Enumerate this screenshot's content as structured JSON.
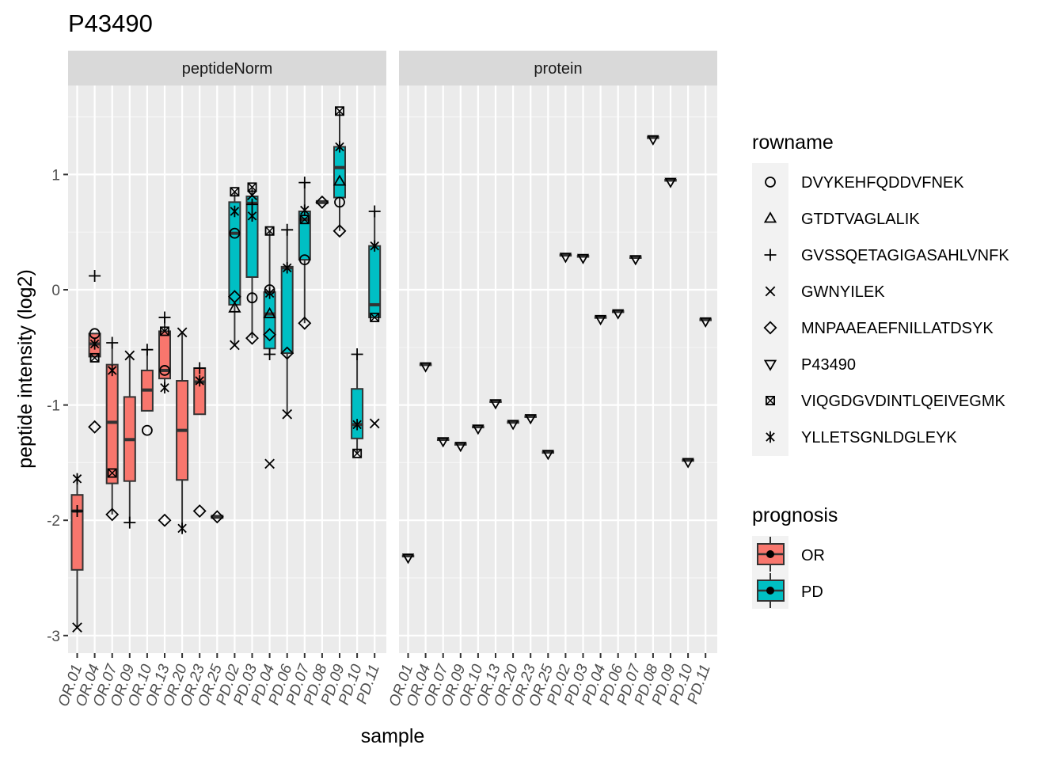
{
  "chart_data": {
    "type": "box",
    "title": "P43490",
    "xlabel": "sample",
    "ylabel": "peptide intensity (log2)",
    "ylim": [
      -3.1,
      1.8
    ],
    "yticks": [
      1,
      0,
      -1,
      -2,
      -3
    ],
    "ytick_labels": [
      "1",
      "0",
      "-1",
      "-2",
      "-3"
    ],
    "grid": true,
    "panels": [
      "peptideNorm",
      "protein"
    ],
    "samples": [
      "OR.01",
      "OR.04",
      "OR.07",
      "OR.09",
      "OR.10",
      "OR.13",
      "OR.20",
      "OR.23",
      "OR.25",
      "PD.02",
      "PD.03",
      "PD.04",
      "PD.06",
      "PD.07",
      "PD.08",
      "PD.09",
      "PD.10",
      "PD.11"
    ],
    "prognosis": [
      "OR",
      "OR",
      "OR",
      "OR",
      "OR",
      "OR",
      "OR",
      "OR",
      "OR",
      "PD",
      "PD",
      "PD",
      "PD",
      "PD",
      "PD",
      "PD",
      "PD",
      "PD"
    ],
    "colors": {
      "OR": "#F8766D",
      "PD": "#00BFC4"
    },
    "legend_rowname": {
      "title": "rowname",
      "position": "right",
      "entries": [
        {
          "label": "DVYKEHFQDDVFNEK",
          "shape": "circle"
        },
        {
          "label": "GTDTVAGLALIK",
          "shape": "triangle"
        },
        {
          "label": "GVSSQETAGIGASAHLVNFK",
          "shape": "plus"
        },
        {
          "label": "GWNYILEK",
          "shape": "cross"
        },
        {
          "label": "MNPAAEAEFNILLATDSYK",
          "shape": "diamond"
        },
        {
          "label": "P43490",
          "shape": "triangle-down"
        },
        {
          "label": "VIQGDGVDINTLQEIVEGMK",
          "shape": "square-cross"
        },
        {
          "label": "YLLETSGNLDGLEYK",
          "shape": "asterisk"
        }
      ]
    },
    "legend_prognosis": {
      "title": "prognosis",
      "entries": [
        "OR",
        "PD"
      ]
    },
    "peptideNorm_boxes": [
      {
        "sample": "OR.01",
        "q1": -2.43,
        "median": -1.92,
        "q3": -1.78,
        "lower": -2.93,
        "upper": -1.64
      },
      {
        "sample": "OR.04",
        "q1": -0.58,
        "median": -0.47,
        "q3": -0.38,
        "lower": -0.58,
        "upper": -0.38
      },
      {
        "sample": "OR.07",
        "q1": -1.68,
        "median": -1.15,
        "q3": -0.65,
        "lower": -1.95,
        "upper": -0.46
      },
      {
        "sample": "OR.09",
        "q1": -1.66,
        "median": -1.3,
        "q3": -0.93,
        "lower": -2.02,
        "upper": -0.57
      },
      {
        "sample": "OR.10",
        "q1": -1.05,
        "median": -0.87,
        "q3": -0.7,
        "lower": -1.05,
        "upper": -0.52
      },
      {
        "sample": "OR.13",
        "q1": -0.77,
        "median": -0.7,
        "q3": -0.36,
        "lower": -0.85,
        "upper": -0.24
      },
      {
        "sample": "OR.20",
        "q1": -1.65,
        "median": -1.22,
        "q3": -0.79,
        "lower": -2.07,
        "upper": -0.37
      },
      {
        "sample": "OR.23",
        "q1": -1.08,
        "median": -0.8,
        "q3": -0.68,
        "lower": -1.08,
        "upper": -0.68
      },
      {
        "sample": "OR.25",
        "q1": -1.98,
        "median": -1.97,
        "q3": -1.96,
        "lower": -1.98,
        "upper": -1.96
      },
      {
        "sample": "PD.02",
        "q1": -0.13,
        "median": 0.49,
        "q3": 0.76,
        "lower": -0.48,
        "upper": 0.85
      },
      {
        "sample": "PD.03",
        "q1": 0.11,
        "median": 0.75,
        "q3": 0.81,
        "lower": -0.42,
        "upper": 0.88
      },
      {
        "sample": "PD.04",
        "q1": -0.51,
        "median": -0.21,
        "q3": -0.02,
        "lower": -0.56,
        "upper": 0.51
      },
      {
        "sample": "PD.06",
        "q1": -0.55,
        "median": 0.19,
        "q3": 0.2,
        "lower": -1.08,
        "upper": 0.52
      },
      {
        "sample": "PD.07",
        "q1": 0.26,
        "median": 0.61,
        "q3": 0.68,
        "lower": -0.29,
        "upper": 0.93
      },
      {
        "sample": "PD.08",
        "q1": 0.75,
        "median": 0.76,
        "q3": 0.77,
        "lower": 0.75,
        "upper": 0.77
      },
      {
        "sample": "PD.09",
        "q1": 0.8,
        "median": 1.06,
        "q3": 1.24,
        "lower": 0.51,
        "upper": 1.55
      },
      {
        "sample": "PD.10",
        "q1": -1.29,
        "median": -1.17,
        "q3": -0.86,
        "lower": -1.42,
        "upper": -0.56
      },
      {
        "sample": "PD.11",
        "q1": -0.24,
        "median": -0.13,
        "q3": 0.38,
        "lower": -0.24,
        "upper": 0.68
      }
    ],
    "peptideNorm_points": [
      {
        "sample": "OR.01",
        "values": {
          "YLLETSGNLDGLEYK": -1.64,
          "GVSSQETAGIGASAHLVNFK": -1.92,
          "GWNYILEK": -2.93
        }
      },
      {
        "sample": "OR.04",
        "values": {
          "GVSSQETAGIGASAHLVNFK": 0.12,
          "DVYKEHFQDDVFNEK": -0.38,
          "YLLETSGNLDGLEYK": -0.47,
          "VIQGDGVDINTLQEIVEGMK": -0.59,
          "MNPAAEAEFNILLATDSYK": -1.19
        }
      },
      {
        "sample": "OR.07",
        "values": {
          "GVSSQETAGIGASAHLVNFK": -0.46,
          "YLLETSGNLDGLEYK": -0.7,
          "VIQGDGVDINTLQEIVEGMK": -1.59,
          "MNPAAEAEFNILLATDSYK": -1.95
        }
      },
      {
        "sample": "OR.09",
        "values": {
          "GWNYILEK": -0.57,
          "GVSSQETAGIGASAHLVNFK": -2.02
        }
      },
      {
        "sample": "OR.10",
        "values": {
          "GVSSQETAGIGASAHLVNFK": -0.52,
          "DVYKEHFQDDVFNEK": -1.22
        }
      },
      {
        "sample": "OR.13",
        "values": {
          "GVSSQETAGIGASAHLVNFK": -0.24,
          "VIQGDGVDINTLQEIVEGMK": -0.36,
          "DVYKEHFQDDVFNEK": -0.7,
          "YLLETSGNLDGLEYK": -0.85,
          "MNPAAEAEFNILLATDSYK": -2.0
        }
      },
      {
        "sample": "OR.20",
        "values": {
          "GWNYILEK": -0.37,
          "YLLETSGNLDGLEYK": -2.07
        }
      },
      {
        "sample": "OR.23",
        "values": {
          "GVSSQETAGIGASAHLVNFK": -0.68,
          "YLLETSGNLDGLEYK": -0.79,
          "MNPAAEAEFNILLATDSYK": -1.92
        }
      },
      {
        "sample": "OR.25",
        "values": {
          "MNPAAEAEFNILLATDSYK": -1.97
        }
      },
      {
        "sample": "PD.02",
        "values": {
          "VIQGDGVDINTLQEIVEGMK": 0.85,
          "YLLETSGNLDGLEYK": 0.68,
          "DVYKEHFQDDVFNEK": 0.49,
          "MNPAAEAEFNILLATDSYK": -0.06,
          "GTDTVAGLALIK": -0.16,
          "GWNYILEK": -0.48
        }
      },
      {
        "sample": "PD.03",
        "values": {
          "VIQGDGVDINTLQEIVEGMK": 0.89,
          "GWNYILEK": 0.82,
          "GVSSQETAGIGASAHLVNFK": 0.74,
          "YLLETSGNLDGLEYK": 0.64,
          "DVYKEHFQDDVFNEK": -0.07,
          "MNPAAEAEFNILLATDSYK": -0.42
        }
      },
      {
        "sample": "PD.04",
        "values": {
          "VIQGDGVDINTLQEIVEGMK": 0.51,
          "DVYKEHFQDDVFNEK": 0.0,
          "YLLETSGNLDGLEYK": -0.03,
          "GTDTVAGLALIK": -0.21,
          "MNPAAEAEFNILLATDSYK": -0.39,
          "GVSSQETAGIGASAHLVNFK": -0.56,
          "GWNYILEK": -1.51
        }
      },
      {
        "sample": "PD.06",
        "values": {
          "GVSSQETAGIGASAHLVNFK": 0.52,
          "YLLETSGNLDGLEYK": 0.19,
          "MNPAAEAEFNILLATDSYK": -0.55,
          "GWNYILEK": -1.08
        }
      },
      {
        "sample": "PD.07",
        "values": {
          "GVSSQETAGIGASAHLVNFK": 0.93,
          "YLLETSGNLDGLEYK": 0.69,
          "VIQGDGVDINTLQEIVEGMK": 0.61,
          "DVYKEHFQDDVFNEK": 0.26,
          "MNPAAEAEFNILLATDSYK": -0.29
        }
      },
      {
        "sample": "PD.08",
        "values": {
          "MNPAAEAEFNILLATDSYK": 0.76
        }
      },
      {
        "sample": "PD.09",
        "values": {
          "VIQGDGVDINTLQEIVEGMK": 1.55,
          "YLLETSGNLDGLEYK": 1.24,
          "GTDTVAGLALIK": 0.94,
          "DVYKEHFQDDVFNEK": 0.76,
          "MNPAAEAEFNILLATDSYK": 0.51
        }
      },
      {
        "sample": "PD.10",
        "values": {
          "GVSSQETAGIGASAHLVNFK": -0.56,
          "YLLETSGNLDGLEYK": -1.17,
          "VIQGDGVDINTLQEIVEGMK": -1.42
        }
      },
      {
        "sample": "PD.11",
        "values": {
          "GVSSQETAGIGASAHLVNFK": 0.68,
          "YLLETSGNLDGLEYK": 0.38,
          "VIQGDGVDINTLQEIVEGMK": -0.24,
          "GWNYILEK": -1.16
        }
      }
    ],
    "protein_values": [
      -2.31,
      -0.65,
      -1.3,
      -1.34,
      -1.19,
      -0.97,
      -1.15,
      -1.1,
      -1.41,
      0.3,
      0.29,
      -0.24,
      -0.19,
      0.28,
      1.32,
      0.95,
      -1.48,
      -0.26
    ]
  }
}
